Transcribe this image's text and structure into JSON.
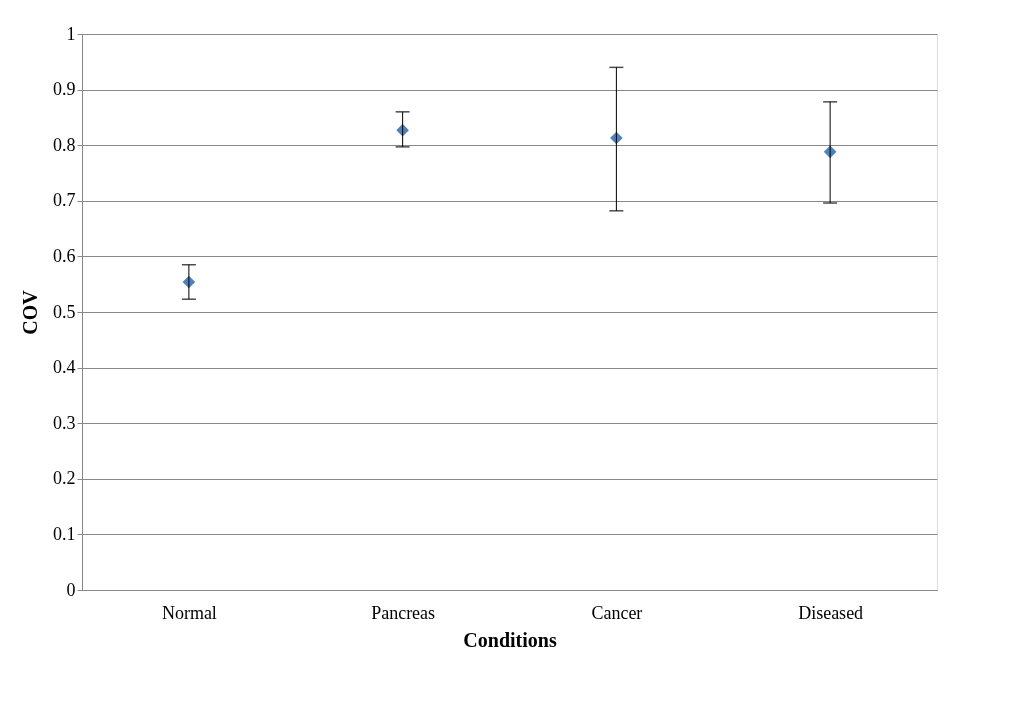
{
  "chart_data": {
    "type": "scatter",
    "xlabel": "Conditions",
    "ylabel": "COV",
    "categories": [
      "Normal",
      "Pancreas",
      "Cancer",
      "Diseased"
    ],
    "series": [
      {
        "color": "#4f81bd",
        "values": [
          0.554,
          0.827,
          0.813,
          0.788
        ],
        "errors": [
          [
            0.523,
            0.585
          ],
          [
            0.797,
            0.86
          ],
          [
            0.682,
            0.94
          ],
          [
            0.696,
            0.878
          ]
        ]
      }
    ],
    "ylim": [
      0,
      1
    ],
    "yticks": [
      0,
      0.1,
      0.2,
      0.3,
      0.4,
      0.5,
      0.6,
      0.7,
      0.8,
      0.9,
      1
    ],
    "grid": "y",
    "marker": "diamond"
  }
}
